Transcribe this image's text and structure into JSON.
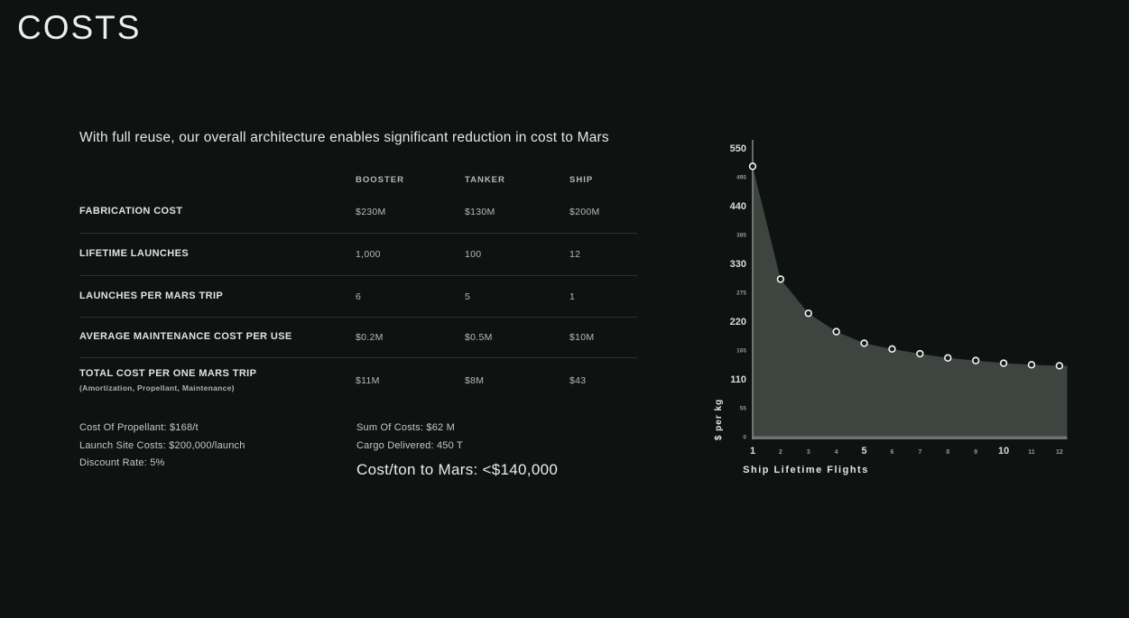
{
  "slide": {
    "title": "COSTS",
    "subtitle": "With full reuse, our overall architecture enables significant reduction in cost to Mars"
  },
  "table": {
    "columns": [
      "BOOSTER",
      "TANKER",
      "SHIP"
    ],
    "rows": [
      {
        "label": "FABRICATION COST",
        "sublabel": "",
        "values": [
          "$230M",
          "$130M",
          "$200M"
        ]
      },
      {
        "label": "LIFETIME LAUNCHES",
        "sublabel": "",
        "values": [
          "1,000",
          "100",
          "12"
        ]
      },
      {
        "label": "LAUNCHES PER MARS TRIP",
        "sublabel": "",
        "values": [
          "6",
          "5",
          "1"
        ]
      },
      {
        "label": "AVERAGE MAINTENANCE COST PER USE",
        "sublabel": "",
        "values": [
          "$0.2M",
          "$0.5M",
          "$10M"
        ]
      },
      {
        "label": "TOTAL COST PER ONE MARS TRIP",
        "sublabel": "(Amortization, Propellant, Maintenance)",
        "values": [
          "$11M",
          "$8M",
          "$43"
        ]
      }
    ]
  },
  "assumptions": [
    "Cost Of Propellant: $168/t",
    "Launch Site Costs: $200,000/launch",
    "Discount Rate: 5%"
  ],
  "summary": {
    "sum_of_costs": "Sum Of Costs:  $62 M",
    "cargo_delivered": "Cargo Delivered: 450 T",
    "cost_per_ton": "Cost/ton to Mars: <$140,000"
  },
  "chart_data": {
    "type": "area",
    "title": "",
    "x": [
      1,
      2,
      3,
      4,
      5,
      6,
      7,
      8,
      9,
      10,
      11,
      12
    ],
    "values": [
      515,
      300,
      235,
      200,
      178,
      167,
      158,
      150,
      145,
      140,
      137,
      135
    ],
    "xlabel": "Ship Lifetime Flights",
    "ylabel": "$ per kg",
    "ylim": [
      0,
      550
    ],
    "y_ticks_major": [
      110,
      220,
      330,
      440,
      550
    ],
    "y_ticks_minor": [
      0,
      55,
      165,
      275,
      385,
      495
    ],
    "x_ticks_major": [
      1,
      5,
      10
    ],
    "marker": "open-circle",
    "grid": false,
    "legend": false
  },
  "colors": {
    "background": "#0e1311",
    "title_text": "#eceeec",
    "body_text": "#e2e4e2",
    "muted_text": "#b5b8b6",
    "divider": "#2c312e",
    "chart_fill": "#3e4440",
    "chart_axis_line": "#a0a4a1",
    "chart_baseline": "#6e736e",
    "marker_stroke": "#f4f4f2",
    "marker_fill": "#171b19",
    "tick_major_text": "#d8dad8",
    "tick_minor_text": "#949895"
  }
}
